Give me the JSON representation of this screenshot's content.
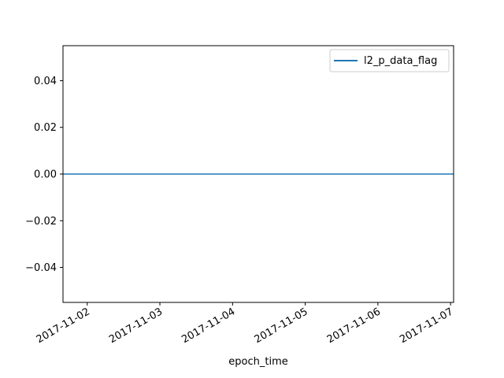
{
  "chart_data": {
    "type": "line",
    "title": "",
    "xlabel": "epoch_time",
    "ylabel": "",
    "x_tick_labels": [
      "2017-11-02",
      "2017-11-03",
      "2017-11-04",
      "2017-11-05",
      "2017-11-06",
      "2017-11-07"
    ],
    "xlim": [
      "2017-11-01 16:00",
      "2017-11-07 01:00"
    ],
    "y_ticks": [
      -0.04,
      -0.02,
      0.0,
      0.02,
      0.04
    ],
    "y_tick_labels": [
      "−0.04",
      "−0.02",
      "0.00",
      "0.02",
      "0.04"
    ],
    "ylim": [
      -0.055,
      0.055
    ],
    "grid": false,
    "legend_position": "upper-right",
    "series": [
      {
        "name": "l2_p_data_flag",
        "color": "#1f77b4",
        "x": [
          "2017-11-01 16:00",
          "2017-11-07 01:00"
        ],
        "values": [
          0,
          0
        ]
      }
    ]
  }
}
